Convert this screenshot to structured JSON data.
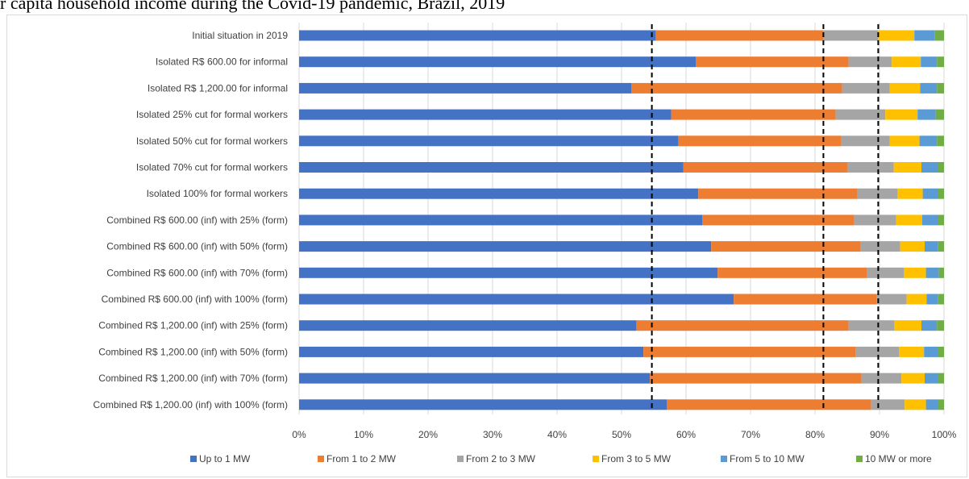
{
  "title": "r capita household income during the Covid-19 pandemic, Brazil, 2019",
  "colors": {
    "series": [
      "#4472C4",
      "#ED7D31",
      "#A5A5A5",
      "#FFC000",
      "#5B9BD5",
      "#70AD47"
    ],
    "grid": "#d9d9d9",
    "reference_line": "#000000"
  },
  "chart_data": {
    "type": "bar",
    "orientation": "horizontal",
    "stacked": "percent",
    "title": "r capita household income during the Covid-19 pandemic, Brazil, 2019",
    "xlabel": "",
    "ylabel": "",
    "xlim": [
      0,
      100
    ],
    "x_ticks": [
      "0%",
      "10%",
      "20%",
      "30%",
      "40%",
      "50%",
      "60%",
      "70%",
      "80%",
      "90%",
      "100%"
    ],
    "grid": true,
    "legend_position": "bottom",
    "reference_lines": [
      54.7,
      81.3,
      89.8
    ],
    "categories": [
      "Initial situation in 2019",
      "Isolated R$ 600.00 for informal",
      "Isolated R$ 1,200.00 for informal",
      "Isolated 25% cut for formal workers",
      "Isolated 50% cut for formal workers",
      "Isolated 70% cut for formal workers",
      "Isolated 100% for formal workers",
      "Combined R$ 600.00 (inf) with 25% (form)",
      "Combined R$ 600.00 (inf) with 50% (form)",
      "Combined R$ 600.00 (inf) with 70% (form)",
      "Combined R$ 600.00 (inf) with 100% (form)",
      "Combined R$ 1,200.00 (inf) with 25% (form)",
      "Combined R$ 1,200.00 (inf) with 50% (form)",
      "Combined R$ 1,200.00 (inf) with 70% (form)",
      "Combined R$ 1,200.00 (inf) with 100% (form)"
    ],
    "series": [
      {
        "name": "Up to 1 MW",
        "values": [
          55.3,
          61.5,
          51.5,
          57.7,
          58.8,
          59.6,
          61.9,
          62.5,
          63.9,
          64.9,
          67.4,
          52.3,
          53.4,
          54.4,
          57.0
        ]
      },
      {
        "name": "From 1 to 2 MW",
        "values": [
          26.0,
          23.7,
          32.7,
          25.5,
          25.3,
          25.4,
          24.7,
          23.6,
          23.1,
          23.1,
          22.1,
          32.9,
          32.9,
          32.8,
          31.7
        ]
      },
      {
        "name": "From 2 to 3 MW",
        "values": [
          8.5,
          6.7,
          7.4,
          7.7,
          7.5,
          7.2,
          6.2,
          6.5,
          6.2,
          5.8,
          4.7,
          7.1,
          6.7,
          6.2,
          5.2
        ]
      },
      {
        "name": "From 3 to 5 MW",
        "values": [
          5.6,
          4.5,
          4.7,
          5.0,
          4.6,
          4.3,
          3.9,
          4.0,
          3.8,
          3.4,
          3.1,
          4.2,
          3.9,
          3.6,
          3.3
        ]
      },
      {
        "name": "From 5 to 10 MW",
        "values": [
          3.2,
          2.5,
          2.6,
          2.8,
          2.7,
          2.5,
          2.3,
          2.4,
          2.1,
          2.0,
          1.8,
          2.4,
          2.1,
          2.0,
          1.8
        ]
      },
      {
        "name": "10 MW or more",
        "values": [
          1.4,
          1.1,
          1.1,
          1.3,
          1.1,
          1.0,
          1.0,
          1.0,
          0.9,
          0.8,
          0.9,
          1.1,
          1.0,
          1.0,
          1.0
        ]
      }
    ]
  }
}
